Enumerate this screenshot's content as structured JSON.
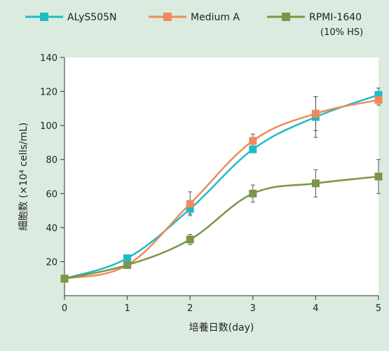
{
  "legend": {
    "series_1": "ALyS505N",
    "series_2": "Medium A",
    "series_3": "RPMI-1640",
    "series_3_note": "(10% HS)"
  },
  "colors": {
    "series_1": "#1fbcc6",
    "series_2": "#f08a5a",
    "series_3": "#7a9646",
    "background": "#dcebdf",
    "plot_background": "#ffffff"
  },
  "chart_data": {
    "type": "line",
    "title": "",
    "xlabel": "培養日数(day)",
    "ylabel": "細胞数 (×10⁴ cells/mL)",
    "x": [
      0,
      1,
      2,
      3,
      4,
      5
    ],
    "xlim": [
      0,
      5
    ],
    "ylim": [
      0,
      140
    ],
    "x_ticks": [
      "0",
      "1",
      "2",
      "3",
      "4",
      "5"
    ],
    "y_ticks": [
      "20",
      "40",
      "60",
      "80",
      "100",
      "120",
      "140"
    ],
    "grid": false,
    "legend_position": "top",
    "series": [
      {
        "name": "ALyS505N",
        "values": [
          10,
          22,
          51,
          86,
          105,
          118
        ],
        "error": [
          0,
          2,
          3,
          2,
          12,
          4
        ]
      },
      {
        "name": "Medium A",
        "values": [
          10,
          18,
          54,
          91,
          107,
          115
        ],
        "error": [
          0,
          1,
          7,
          4,
          10,
          3
        ]
      },
      {
        "name": "RPMI-1640 (10% HS)",
        "values": [
          10,
          18,
          33,
          60,
          66,
          70
        ],
        "error": [
          0,
          1,
          3,
          5,
          8,
          10
        ]
      }
    ]
  }
}
